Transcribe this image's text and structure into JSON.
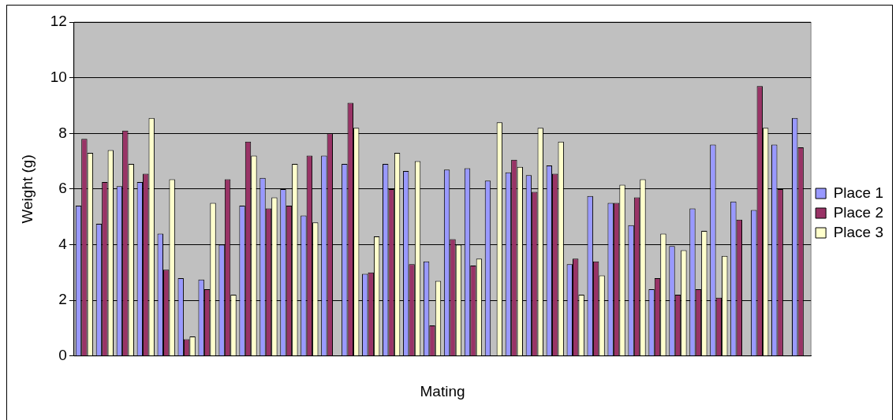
{
  "chart_data": {
    "type": "bar",
    "xlabel": "Mating",
    "ylabel": "Weight (g)",
    "categories": [
      null,
      null,
      null,
      null,
      null,
      null,
      null,
      null,
      null,
      null,
      null,
      null,
      null,
      null,
      null,
      null,
      null,
      null,
      null,
      null,
      null,
      null,
      null,
      null,
      null,
      null,
      null,
      null,
      null,
      null,
      null,
      null,
      null,
      null,
      null,
      null
    ],
    "series": [
      {
        "name": "Place 1",
        "color": "#9999ff",
        "values": [
          5.4,
          4.75,
          6.1,
          6.25,
          4.4,
          2.8,
          2.75,
          4.0,
          5.4,
          6.4,
          6.0,
          5.05,
          7.2,
          6.9,
          2.95,
          6.9,
          6.65,
          3.4,
          6.7,
          6.75,
          6.3,
          6.6,
          6.5,
          6.85,
          3.3,
          5.75,
          5.5,
          4.7,
          2.4,
          3.95,
          5.3,
          7.6,
          5.55,
          5.25,
          7.6,
          8.55
        ]
      },
      {
        "name": "Place 2",
        "color": "#993366",
        "values": [
          7.8,
          6.25,
          8.1,
          6.55,
          3.1,
          0.6,
          2.4,
          6.35,
          7.7,
          5.3,
          5.4,
          7.2,
          8.0,
          9.1,
          3.0,
          6.0,
          3.3,
          1.1,
          4.2,
          3.25,
          null,
          7.05,
          5.9,
          6.55,
          3.5,
          3.4,
          5.5,
          5.7,
          2.8,
          2.2,
          2.4,
          2.1,
          4.9,
          9.7,
          6.0,
          7.5
        ]
      },
      {
        "name": "Place 3",
        "color": "#ffffcc",
        "values": [
          7.3,
          7.4,
          6.9,
          8.55,
          6.35,
          0.7,
          5.5,
          2.2,
          7.2,
          5.7,
          6.9,
          4.8,
          null,
          8.2,
          4.3,
          7.3,
          7.0,
          2.7,
          4.0,
          3.5,
          8.4,
          6.8,
          8.2,
          7.7,
          2.2,
          2.9,
          6.15,
          6.35,
          4.4,
          3.8,
          4.5,
          3.6,
          null,
          8.2,
          null,
          null
        ]
      }
    ],
    "ylim": [
      0,
      12
    ],
    "yticks": [
      0,
      2,
      4,
      6,
      8,
      10,
      12
    ],
    "grid": "y",
    "legend": "right"
  }
}
